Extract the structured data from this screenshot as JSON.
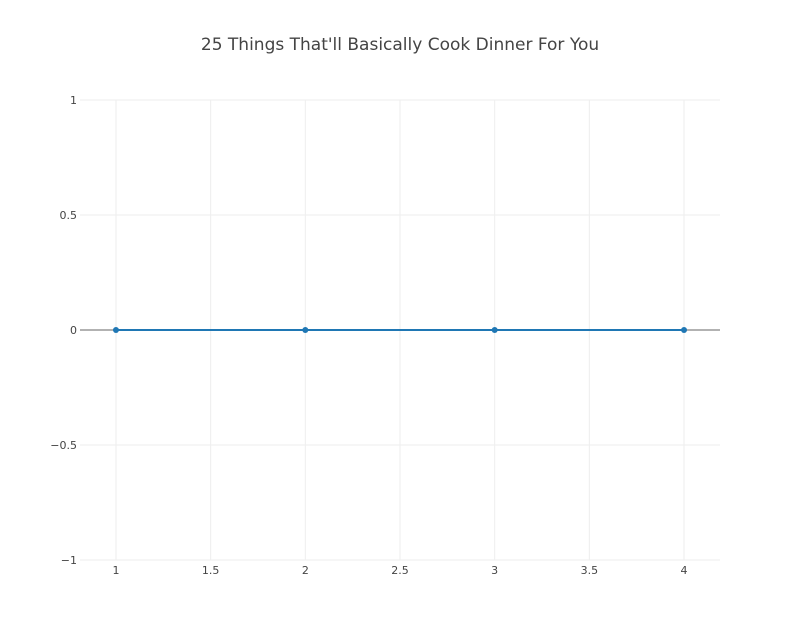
{
  "chart_data": {
    "type": "line",
    "title": "25 Things That'll Basically Cook Dinner For You",
    "xlabel": "",
    "ylabel": "",
    "x": [
      1,
      2,
      3,
      4
    ],
    "series": [
      {
        "values": [
          0,
          0,
          0,
          0
        ]
      }
    ],
    "xlim": [
      0.81,
      4.19
    ],
    "ylim": [
      -1,
      1
    ],
    "x_ticks": [
      1,
      1.5,
      2,
      2.5,
      3,
      3.5,
      4
    ],
    "x_tick_labels": [
      "1",
      "1.5",
      "2",
      "2.5",
      "3",
      "3.5",
      "4"
    ],
    "y_ticks": [
      1,
      0.5,
      0,
      -0.5,
      -1
    ],
    "y_tick_labels": [
      "1",
      "0.5",
      "0",
      "−0.5",
      "−1"
    ],
    "grid": true,
    "line_color": "#1f77b4",
    "zero_line_color": "#999999"
  }
}
